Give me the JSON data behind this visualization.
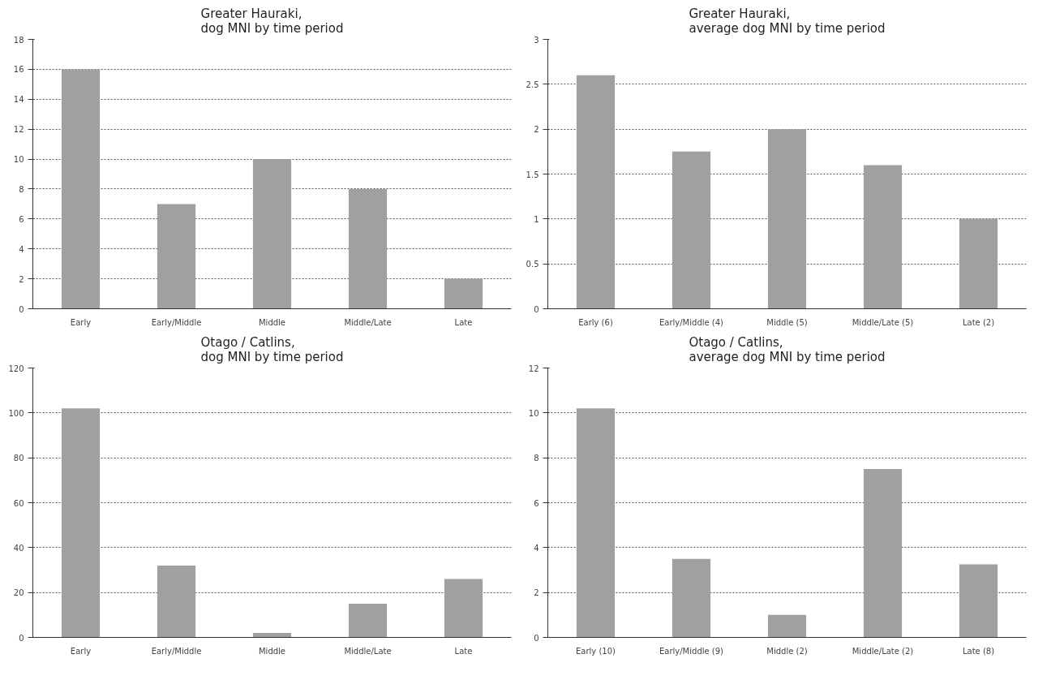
{
  "chart_data": [
    {
      "type": "bar",
      "title": "Greater Hauraki,\ndog MNI by time period",
      "categories": [
        "Early",
        "Early/Middle",
        "Middle",
        "Middle/Late",
        "Late"
      ],
      "values": [
        16,
        7,
        10,
        8,
        2
      ],
      "color": "#a0a0a0",
      "ylim": [
        0,
        18
      ],
      "yticks": [
        0,
        2,
        4,
        6,
        8,
        10,
        12,
        14,
        16,
        18
      ],
      "grid": "y"
    },
    {
      "type": "bar",
      "title": "Greater Hauraki,\naverage dog MNI by time period",
      "categories": [
        "Early (6)",
        "Early/Middle (4)",
        "Middle (5)",
        "Middle/Late (5)",
        "Late (2)"
      ],
      "values": [
        2.6,
        1.75,
        2,
        1.6,
        1
      ],
      "color": "#a0a0a0",
      "ylim": [
        0,
        3
      ],
      "yticks": [
        0,
        0.5,
        1,
        1.5,
        2,
        2.5,
        3
      ],
      "grid": "y"
    },
    {
      "type": "bar",
      "title": "Otago / Catlins,\ndog MNI by time period",
      "categories": [
        "Early",
        "Early/Middle",
        "Middle",
        "Middle/Late",
        "Late"
      ],
      "values": [
        102,
        32,
        2,
        15,
        26
      ],
      "color": "#a0a0a0",
      "ylim": [
        0,
        120
      ],
      "yticks": [
        0,
        20,
        40,
        60,
        80,
        100,
        120
      ],
      "grid": "y"
    },
    {
      "type": "bar",
      "title": "Otago / Catlins,\naverage dog MNI by time period",
      "categories": [
        "Early (10)",
        "Early/Middle (9)",
        "Middle (2)",
        "Middle/Late (2)",
        "Late (8)"
      ],
      "values": [
        10.2,
        3.5,
        1,
        7.5,
        3.25
      ],
      "color": "#a0a0a0",
      "ylim": [
        0,
        12
      ],
      "yticks": [
        0,
        2,
        4,
        6,
        8,
        10,
        12
      ],
      "grid": "y"
    }
  ]
}
